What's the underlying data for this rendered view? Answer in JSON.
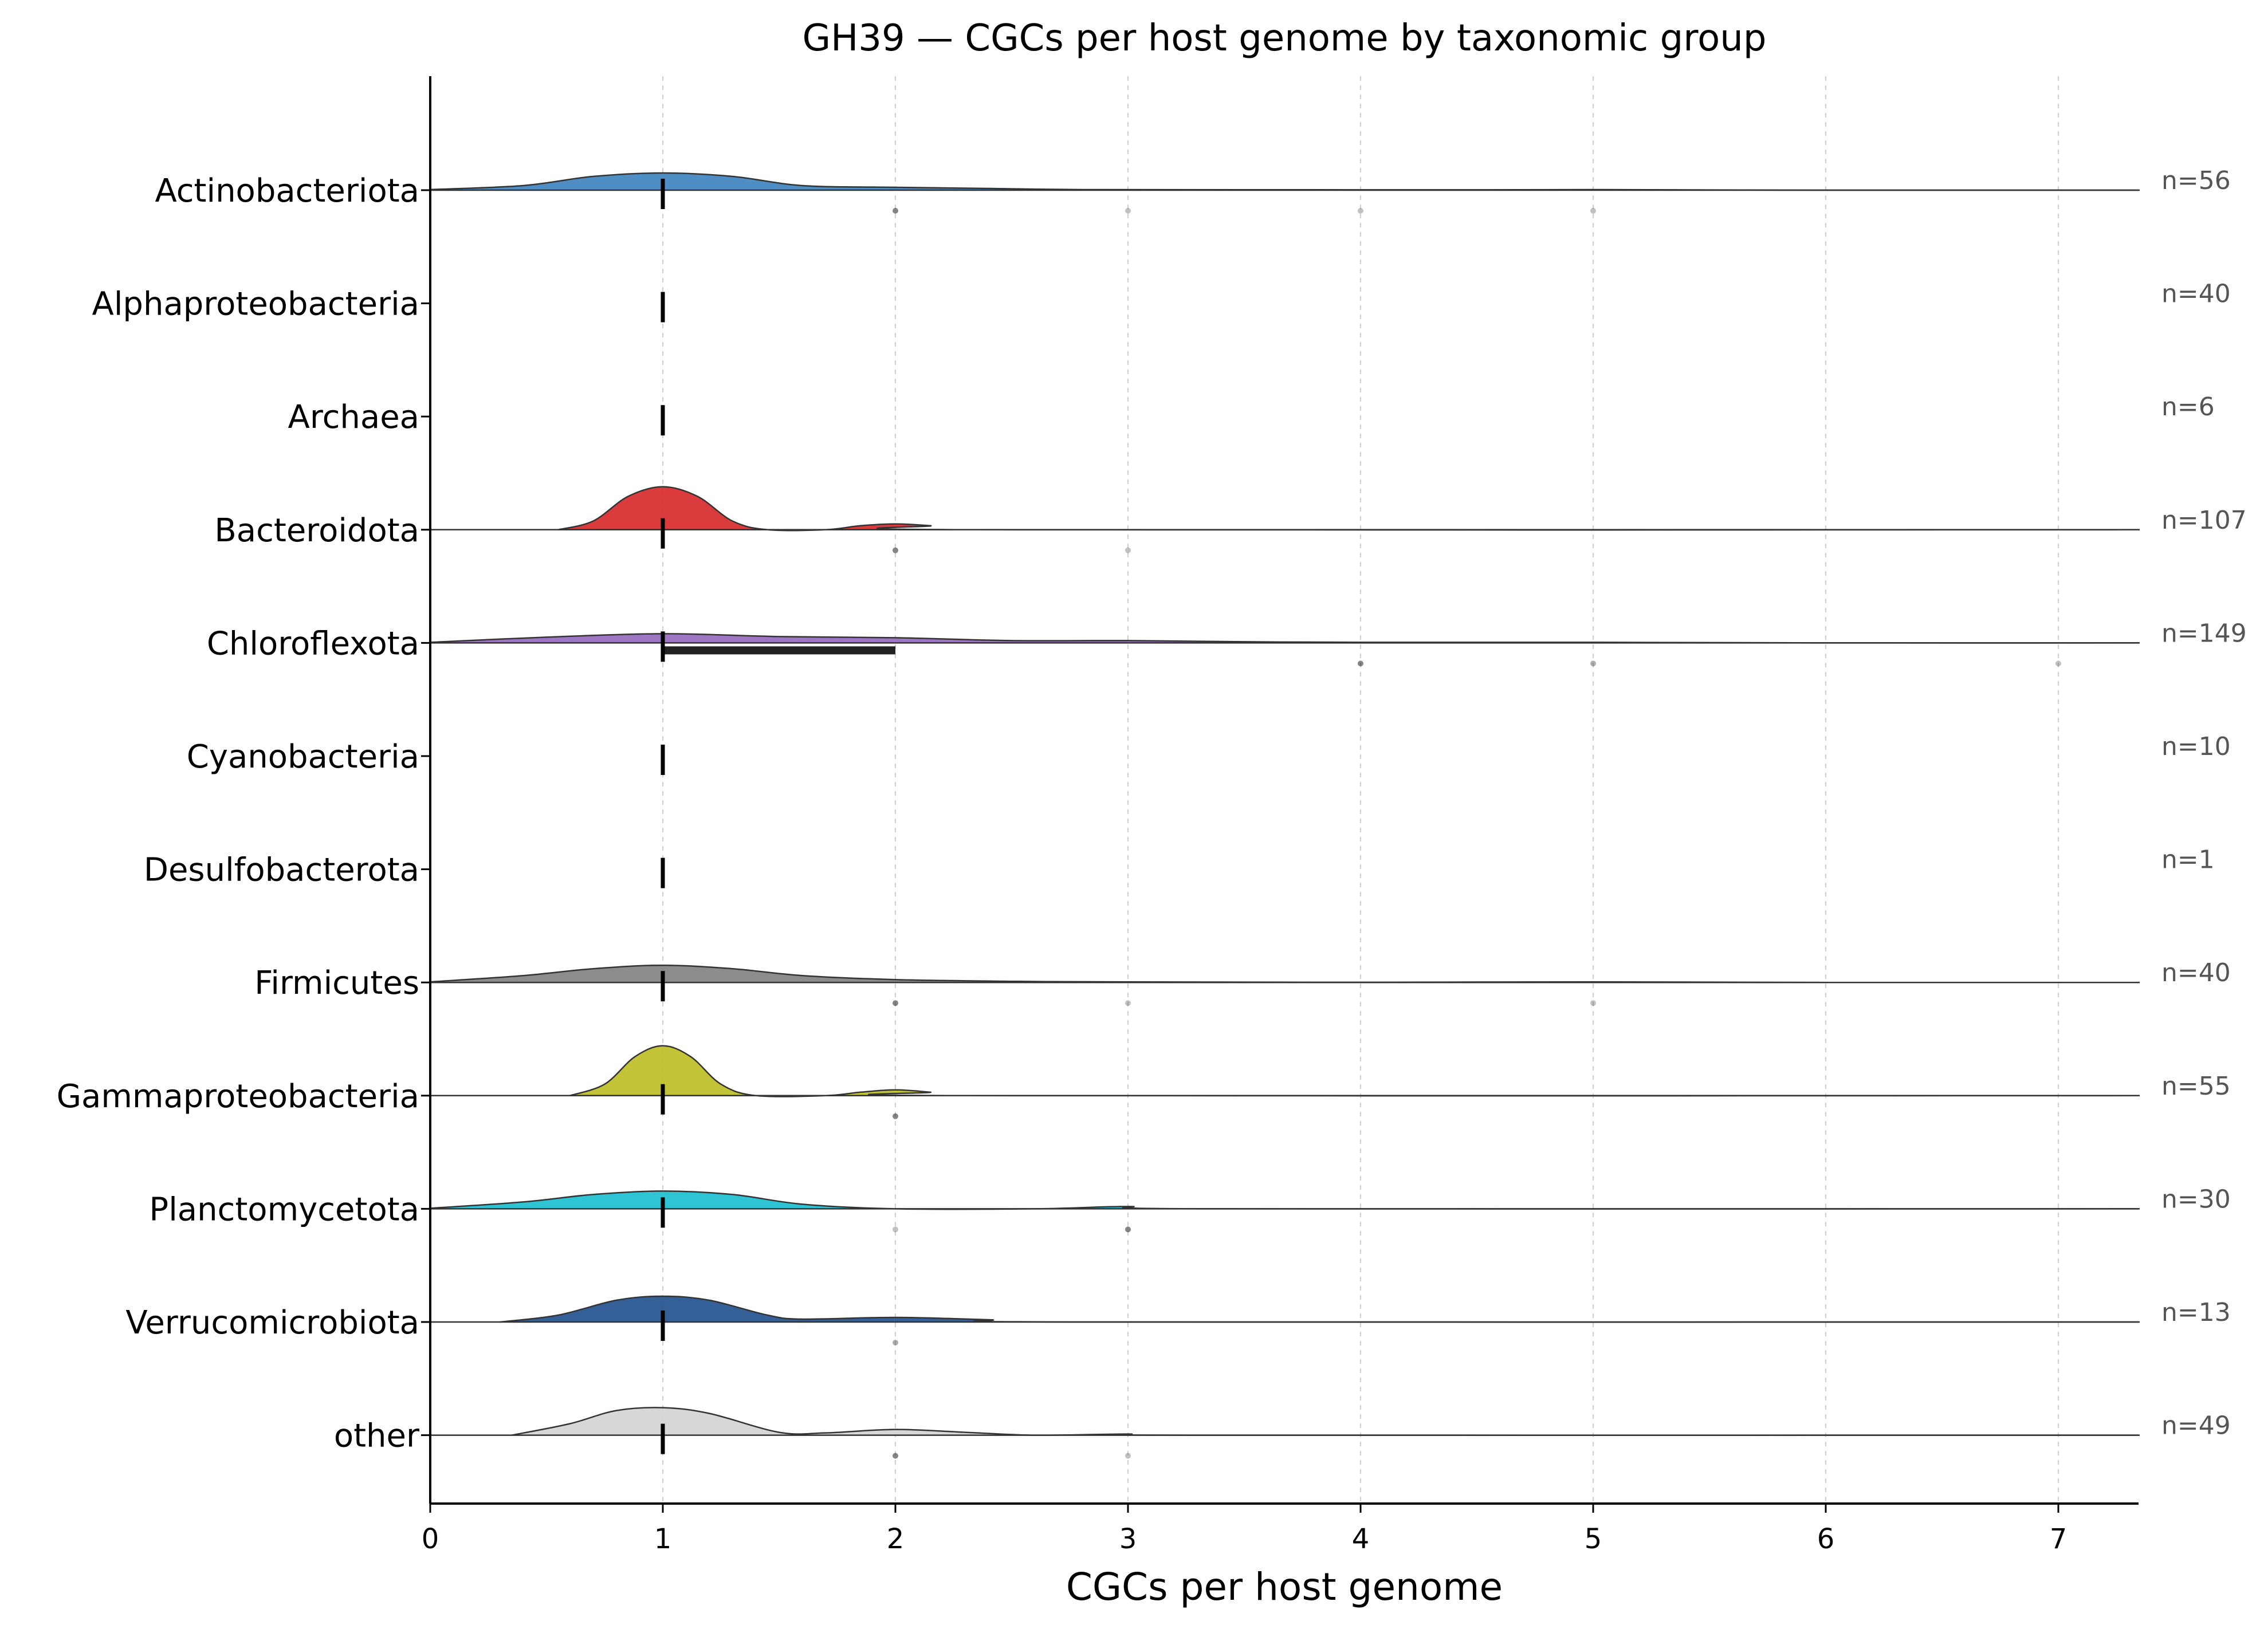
{
  "chart_data": {
    "type": "ridgeline",
    "title": "GH39 — CGCs per host genome by taxonomic group",
    "xlabel": "CGCs per host genome",
    "ylabel": "",
    "xlim": [
      0,
      7.35
    ],
    "xticks": [
      "0",
      "1",
      "2",
      "3",
      "4",
      "5",
      "6",
      "7"
    ],
    "grid": "vertical dashed at integer ticks",
    "groups": [
      {
        "name": "Actinobacteriota",
        "n_label": "n=56",
        "color": "#3b82be",
        "median": 1,
        "iqr": [
          1,
          1
        ],
        "outliers": [
          {
            "x": 2,
            "alpha": 0.6
          },
          {
            "x": 3,
            "alpha": 0.3
          },
          {
            "x": 4,
            "alpha": 0.3
          },
          {
            "x": 5,
            "alpha": 0.3
          }
        ],
        "density": [
          [
            0,
            0.01
          ],
          [
            0.4,
            0.08
          ],
          [
            0.7,
            0.24
          ],
          [
            1.0,
            0.3
          ],
          [
            1.3,
            0.24
          ],
          [
            1.6,
            0.08
          ],
          [
            2.0,
            0.05
          ],
          [
            2.4,
            0.03
          ],
          [
            2.8,
            0.01
          ],
          [
            3.5,
            0.008
          ],
          [
            4.5,
            0.006
          ],
          [
            5.0,
            0.01
          ],
          [
            5.5,
            0.004
          ],
          [
            6.0,
            0.0
          ],
          [
            7.35,
            0.0
          ]
        ]
      },
      {
        "name": "Alphaproteobacteria",
        "n_label": "n=40",
        "color": "#ff7f0e",
        "median": 1,
        "iqr": [
          1,
          1
        ],
        "outliers": [],
        "density": []
      },
      {
        "name": "Archaea",
        "n_label": "n=6",
        "color": "#2ca02c",
        "median": 1,
        "iqr": [
          1,
          1
        ],
        "outliers": [],
        "density": []
      },
      {
        "name": "Bacteroidota",
        "n_label": "n=107",
        "color": "#d62728",
        "median": 1,
        "iqr": [
          1,
          1
        ],
        "outliers": [
          {
            "x": 2,
            "alpha": 0.6
          },
          {
            "x": 3,
            "alpha": 0.3
          }
        ],
        "density": [
          [
            0.55,
            0.0
          ],
          [
            0.7,
            0.15
          ],
          [
            0.85,
            0.58
          ],
          [
            1.0,
            0.75
          ],
          [
            1.15,
            0.58
          ],
          [
            1.3,
            0.15
          ],
          [
            1.45,
            0.0
          ],
          [
            1.7,
            0.0
          ],
          [
            1.85,
            0.07
          ],
          [
            2.0,
            0.1
          ],
          [
            2.15,
            0.07
          ],
          [
            2.35,
            0.0
          ],
          [
            7.35,
            0.0
          ]
        ]
      },
      {
        "name": "Chloroflexota",
        "n_label": "n=149",
        "color": "#9467bd",
        "median": 1,
        "iqr": [
          1,
          2
        ],
        "outliers": [
          {
            "x": 4,
            "alpha": 0.6
          },
          {
            "x": 5,
            "alpha": 0.4
          },
          {
            "x": 7,
            "alpha": 0.3
          }
        ],
        "density": [
          [
            0,
            0.01
          ],
          [
            0.5,
            0.1
          ],
          [
            1.0,
            0.16
          ],
          [
            1.5,
            0.11
          ],
          [
            2.0,
            0.09
          ],
          [
            2.5,
            0.04
          ],
          [
            3.0,
            0.04
          ],
          [
            3.5,
            0.02
          ],
          [
            4.0,
            0.01
          ],
          [
            5.0,
            0.01
          ],
          [
            6.0,
            0.0
          ],
          [
            7.35,
            0.0
          ]
        ]
      },
      {
        "name": "Cyanobacteria",
        "n_label": "n=10",
        "color": "#8c564b",
        "median": 1,
        "iqr": [
          1,
          1
        ],
        "outliers": [],
        "density": []
      },
      {
        "name": "Desulfobacterota",
        "n_label": "n=1",
        "color": "#e377c2",
        "median": 1,
        "iqr": [
          1,
          1
        ],
        "outliers": [],
        "density": []
      },
      {
        "name": "Firmicutes",
        "n_label": "n=40",
        "color": "#7f7f7f",
        "median": 1,
        "iqr": [
          1,
          1
        ],
        "outliers": [
          {
            "x": 2,
            "alpha": 0.6
          },
          {
            "x": 3,
            "alpha": 0.3
          },
          {
            "x": 5,
            "alpha": 0.3
          }
        ],
        "density": [
          [
            0,
            0.01
          ],
          [
            0.4,
            0.12
          ],
          [
            0.7,
            0.24
          ],
          [
            1.0,
            0.3
          ],
          [
            1.3,
            0.24
          ],
          [
            1.6,
            0.12
          ],
          [
            2.0,
            0.05
          ],
          [
            2.5,
            0.02
          ],
          [
            3.0,
            0.01
          ],
          [
            4.0,
            0.003
          ],
          [
            5.0,
            0.01
          ],
          [
            6.0,
            0.0
          ],
          [
            7.35,
            0.0
          ]
        ]
      },
      {
        "name": "Gammaproteobacteria",
        "n_label": "n=55",
        "color": "#bcbd22",
        "median": 1,
        "iqr": [
          1,
          1
        ],
        "outliers": [
          {
            "x": 2,
            "alpha": 0.6
          }
        ],
        "density": [
          [
            0.6,
            0.0
          ],
          [
            0.75,
            0.2
          ],
          [
            0.88,
            0.68
          ],
          [
            1.0,
            0.87
          ],
          [
            1.12,
            0.68
          ],
          [
            1.25,
            0.2
          ],
          [
            1.4,
            0.0
          ],
          [
            1.7,
            0.0
          ],
          [
            1.85,
            0.06
          ],
          [
            2.0,
            0.1
          ],
          [
            2.15,
            0.06
          ],
          [
            2.3,
            0.0
          ],
          [
            7.35,
            0.0
          ]
        ]
      },
      {
        "name": "Planctomycetota",
        "n_label": "n=30",
        "color": "#17becf",
        "median": 1,
        "iqr": [
          1,
          1
        ],
        "outliers": [
          {
            "x": 2,
            "alpha": 0.3
          },
          {
            "x": 3,
            "alpha": 0.6
          }
        ],
        "density": [
          [
            0,
            0.01
          ],
          [
            0.4,
            0.12
          ],
          [
            0.7,
            0.25
          ],
          [
            1.0,
            0.31
          ],
          [
            1.3,
            0.25
          ],
          [
            1.6,
            0.08
          ],
          [
            2.0,
            0.0
          ],
          [
            2.6,
            0.0
          ],
          [
            3.0,
            0.04
          ],
          [
            3.4,
            0.0
          ],
          [
            7.35,
            0.0
          ]
        ]
      },
      {
        "name": "Verrucomicrobiota",
        "n_label": "n=13",
        "color": "#1f4e8c",
        "median": 1,
        "iqr": [
          1,
          1
        ],
        "outliers": [
          {
            "x": 2,
            "alpha": 0.4
          }
        ],
        "density": [
          [
            0.3,
            0.0
          ],
          [
            0.55,
            0.12
          ],
          [
            0.8,
            0.38
          ],
          [
            1.0,
            0.45
          ],
          [
            1.2,
            0.38
          ],
          [
            1.45,
            0.12
          ],
          [
            1.6,
            0.05
          ],
          [
            2.0,
            0.08
          ],
          [
            2.4,
            0.04
          ],
          [
            2.8,
            0.0
          ],
          [
            7.35,
            0.0
          ]
        ]
      },
      {
        "name": "other",
        "n_label": "n=49",
        "color": "#d3d3d3",
        "median": 1,
        "iqr": [
          1,
          1
        ],
        "outliers": [
          {
            "x": 2,
            "alpha": 0.6
          },
          {
            "x": 3,
            "alpha": 0.3
          }
        ],
        "density": [
          [
            0.35,
            0.0
          ],
          [
            0.6,
            0.2
          ],
          [
            0.8,
            0.43
          ],
          [
            1.0,
            0.48
          ],
          [
            1.2,
            0.38
          ],
          [
            1.5,
            0.05
          ],
          [
            1.7,
            0.04
          ],
          [
            2.0,
            0.1
          ],
          [
            2.3,
            0.05
          ],
          [
            2.6,
            0.0
          ],
          [
            3.0,
            0.02
          ],
          [
            3.3,
            0.0
          ],
          [
            7.35,
            0.0
          ]
        ]
      }
    ]
  }
}
